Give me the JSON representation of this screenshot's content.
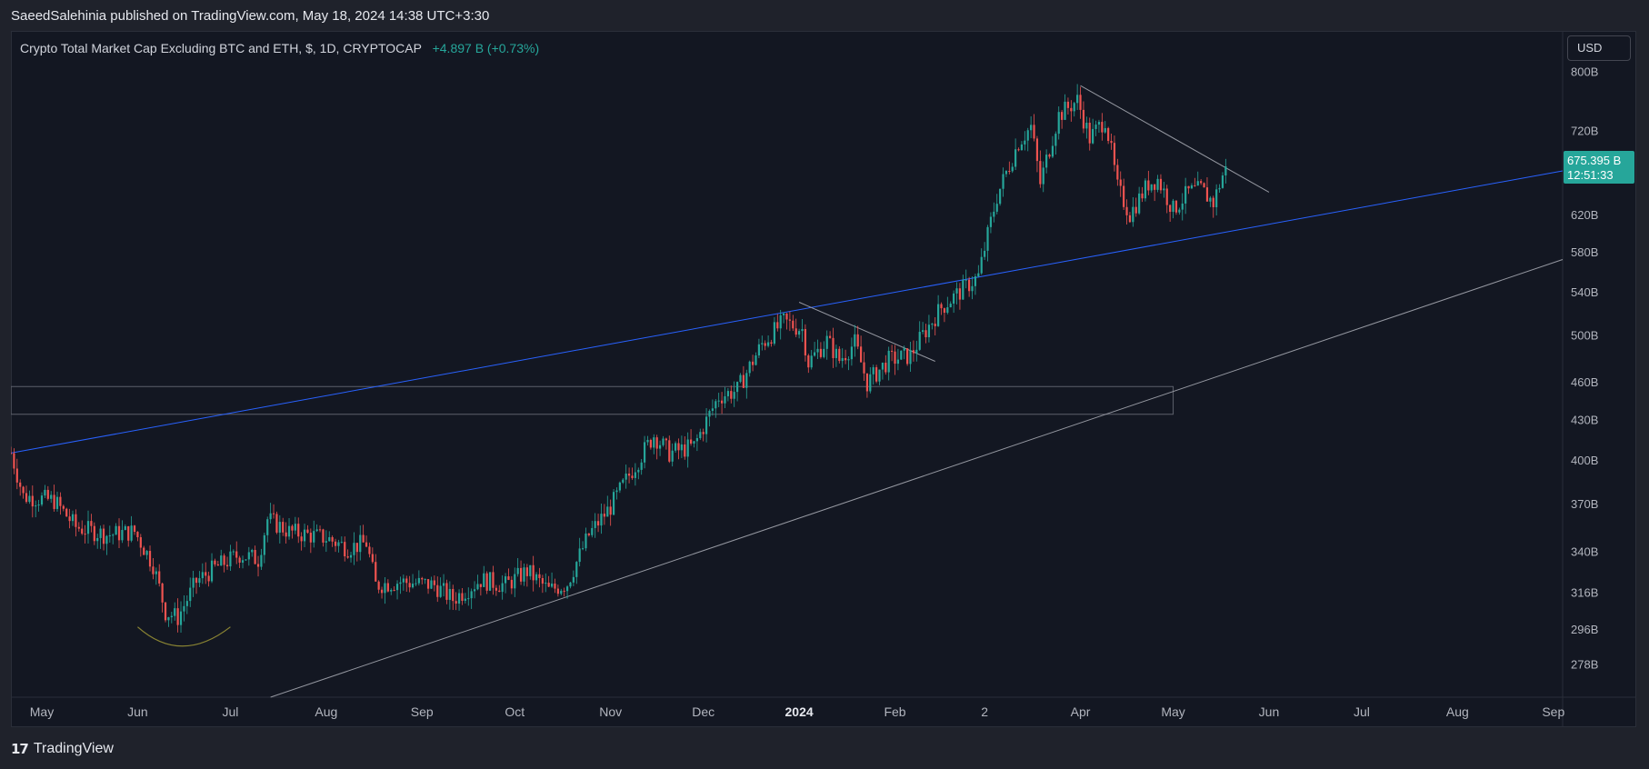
{
  "header": {
    "caption": "SaeedSalehinia published on TradingView.com, May 18, 2024 14:38 UTC+3:30"
  },
  "legend": {
    "symbol": "Crypto Total Market Cap Excluding BTC and ETH, $, 1D, CRYPTOCAP",
    "change": "+4.897 B (+0.73%)"
  },
  "currency_button": "USD",
  "footer": {
    "brand": "TradingView",
    "logo_glyph": "𝟭𝟳"
  },
  "colors": {
    "up": "#26a69a",
    "down": "#ef5350",
    "background": "#131722",
    "blue_trendline": "#2962ff",
    "gray_lines": "#9598a1",
    "arc": "#8a8433",
    "price_tag": "#26a69a"
  },
  "chart_data": {
    "type": "candlestick",
    "title": "Crypto Total Market Cap Excluding BTC and ETH, $, 1D, CRYPTOCAP",
    "y_scale": "log",
    "ylim": [
      262,
      860
    ],
    "y_ticks": [
      {
        "value": 800,
        "label": "800B"
      },
      {
        "value": 720,
        "label": "720B"
      },
      {
        "value": 620,
        "label": "620B"
      },
      {
        "value": 580,
        "label": "580B"
      },
      {
        "value": 540,
        "label": "540B"
      },
      {
        "value": 500,
        "label": "500B"
      },
      {
        "value": 460,
        "label": "460B"
      },
      {
        "value": 430,
        "label": "430B"
      },
      {
        "value": 400,
        "label": "400B"
      },
      {
        "value": 370,
        "label": "370B"
      },
      {
        "value": 340,
        "label": "340B"
      },
      {
        "value": 316,
        "label": "316B"
      },
      {
        "value": 296,
        "label": "296B"
      },
      {
        "value": 278,
        "label": "278B"
      }
    ],
    "x_range": [
      "2023-04-21",
      "2024-09-04"
    ],
    "x_ticks": [
      {
        "date": "2023-05-01",
        "label": "May",
        "bold": false
      },
      {
        "date": "2023-06-01",
        "label": "Jun",
        "bold": false
      },
      {
        "date": "2023-07-01",
        "label": "Jul",
        "bold": false
      },
      {
        "date": "2023-08-01",
        "label": "Aug",
        "bold": false
      },
      {
        "date": "2023-09-01",
        "label": "Sep",
        "bold": false
      },
      {
        "date": "2023-10-01",
        "label": "Oct",
        "bold": false
      },
      {
        "date": "2023-11-01",
        "label": "Nov",
        "bold": false
      },
      {
        "date": "2023-12-01",
        "label": "Dec",
        "bold": false
      },
      {
        "date": "2024-01-01",
        "label": "2024",
        "bold": true
      },
      {
        "date": "2024-02-01",
        "label": "Feb",
        "bold": false
      },
      {
        "date": "2024-03-01",
        "label": "2",
        "bold": false
      },
      {
        "date": "2024-04-01",
        "label": "Apr",
        "bold": false
      },
      {
        "date": "2024-05-01",
        "label": "May",
        "bold": false
      },
      {
        "date": "2024-06-01",
        "label": "Jun",
        "bold": false
      },
      {
        "date": "2024-07-01",
        "label": "Jul",
        "bold": false
      },
      {
        "date": "2024-08-01",
        "label": "Aug",
        "bold": false
      },
      {
        "date": "2024-09-01",
        "label": "Sep",
        "bold": false
      }
    ],
    "close_path": [
      [
        "2023-04-21",
        405
      ],
      [
        "2023-04-25",
        375
      ],
      [
        "2023-05-05",
        372
      ],
      [
        "2023-05-12",
        355
      ],
      [
        "2023-05-22",
        350
      ],
      [
        "2023-05-31",
        352
      ],
      [
        "2023-06-06",
        332
      ],
      [
        "2023-06-10",
        305
      ],
      [
        "2023-06-14",
        302
      ],
      [
        "2023-06-20",
        322
      ],
      [
        "2023-06-26",
        330
      ],
      [
        "2023-07-04",
        338
      ],
      [
        "2023-07-10",
        335
      ],
      [
        "2023-07-13",
        360
      ],
      [
        "2023-07-20",
        352
      ],
      [
        "2023-08-01",
        348
      ],
      [
        "2023-08-08",
        342
      ],
      [
        "2023-08-14",
        345
      ],
      [
        "2023-08-17",
        320
      ],
      [
        "2023-08-25",
        322
      ],
      [
        "2023-09-05",
        320
      ],
      [
        "2023-09-11",
        312
      ],
      [
        "2023-09-20",
        323
      ],
      [
        "2023-09-28",
        320
      ],
      [
        "2023-10-05",
        328
      ],
      [
        "2023-10-12",
        317
      ],
      [
        "2023-10-18",
        321
      ],
      [
        "2023-10-25",
        350
      ],
      [
        "2023-11-01",
        368
      ],
      [
        "2023-11-10",
        400
      ],
      [
        "2023-11-15",
        418
      ],
      [
        "2023-11-20",
        405
      ],
      [
        "2023-11-28",
        410
      ],
      [
        "2023-12-06",
        448
      ],
      [
        "2023-12-12",
        453
      ],
      [
        "2023-12-20",
        492
      ],
      [
        "2023-12-27",
        512
      ],
      [
        "2024-01-02",
        505
      ],
      [
        "2024-01-04",
        476
      ],
      [
        "2024-01-10",
        495
      ],
      [
        "2024-01-14",
        478
      ],
      [
        "2024-01-19",
        493
      ],
      [
        "2024-01-23",
        459
      ],
      [
        "2024-01-30",
        478
      ],
      [
        "2024-02-06",
        482
      ],
      [
        "2024-02-10",
        500
      ],
      [
        "2024-02-16",
        525
      ],
      [
        "2024-02-24",
        545
      ],
      [
        "2024-02-28",
        555
      ],
      [
        "2024-03-05",
        640
      ],
      [
        "2024-03-12",
        705
      ],
      [
        "2024-03-16",
        725
      ],
      [
        "2024-03-19",
        655
      ],
      [
        "2024-03-25",
        740
      ],
      [
        "2024-03-31",
        760
      ],
      [
        "2024-04-04",
        710
      ],
      [
        "2024-04-09",
        735
      ],
      [
        "2024-04-13",
        650
      ],
      [
        "2024-04-17",
        620
      ],
      [
        "2024-04-23",
        655
      ],
      [
        "2024-04-26",
        660
      ],
      [
        "2024-05-01",
        625
      ],
      [
        "2024-05-06",
        645
      ],
      [
        "2024-05-10",
        648
      ],
      [
        "2024-05-14",
        633
      ],
      [
        "2024-05-18",
        675.395
      ]
    ],
    "last_price_label": "675.395 B",
    "countdown_label": "12:51:33",
    "annotations": {
      "blue_trendline": {
        "from": [
          "2023-04-21",
          405
        ],
        "to": [
          "2024-09-04",
          670
        ]
      },
      "lower_support_line": {
        "from": [
          "2023-07-14",
          262
        ],
        "to": [
          "2024-09-04",
          572
        ]
      },
      "upper_resistance_line": {
        "from": [
          "2024-04-01",
          780
        ],
        "to": [
          "2024-06-01",
          645
        ]
      },
      "wedge_line": {
        "from": [
          "2024-01-01",
          530
        ],
        "to": [
          "2024-02-14",
          477
        ]
      },
      "range_box": {
        "from_date": "2023-04-21",
        "to_date": "2024-05-01",
        "low": 434,
        "high": 456
      },
      "rounding_arc": {
        "from": [
          "2023-06-01",
          297
        ],
        "mid": [
          "2023-06-15",
          287
        ],
        "to": [
          "2023-07-01",
          297
        ]
      }
    }
  }
}
